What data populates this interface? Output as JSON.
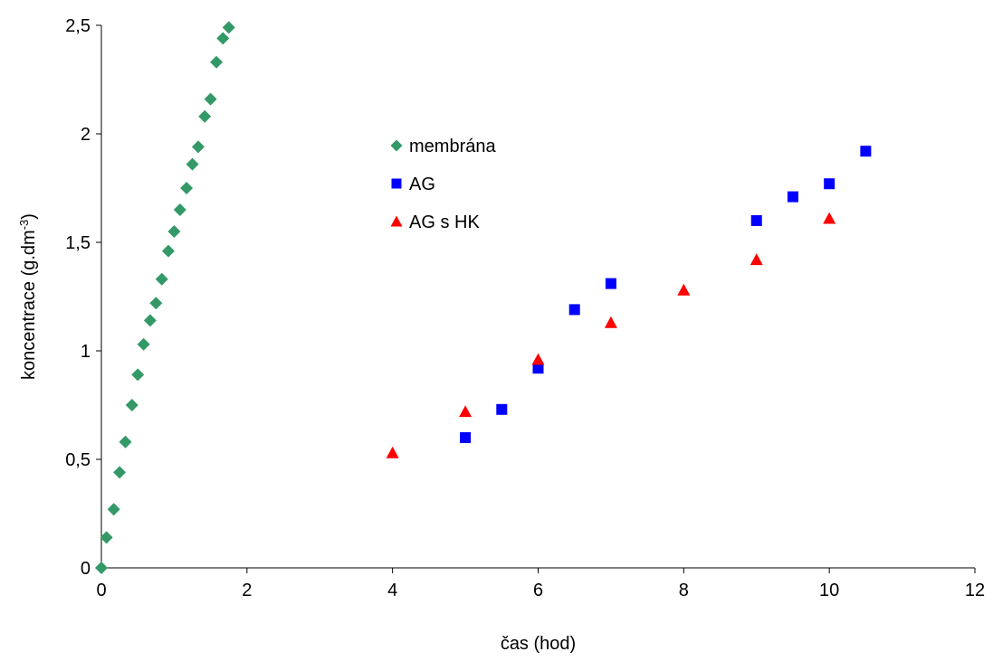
{
  "chart_data": {
    "type": "scatter",
    "title": "",
    "xlabel": "čas (hod)",
    "ylabel": {
      "base": "koncentrace (g.dm",
      "sup": "-3",
      "close": ")"
    },
    "xlim": [
      0,
      12
    ],
    "ylim": [
      0,
      2.5
    ],
    "x_ticks": [
      0,
      2,
      4,
      6,
      8,
      10,
      12
    ],
    "x_tick_labels": [
      "0",
      "2",
      "4",
      "6",
      "8",
      "10",
      "12"
    ],
    "y_ticks": [
      0,
      0.5,
      1,
      1.5,
      2,
      2.5
    ],
    "y_tick_labels": [
      "0",
      "0,5",
      "1",
      "1,5",
      "2",
      "2,5"
    ],
    "grid": false,
    "legend_position": "upper-center",
    "series": [
      {
        "name": "membrána",
        "marker": "diamond",
        "color": "#339966",
        "x": [
          0,
          0.07,
          0.17,
          0.25,
          0.33,
          0.42,
          0.5,
          0.58,
          0.67,
          0.75,
          0.83,
          0.92,
          1.0,
          1.08,
          1.17,
          1.25,
          1.33,
          1.42,
          1.5,
          1.58,
          1.67,
          1.75
        ],
        "y": [
          0,
          0.14,
          0.27,
          0.44,
          0.58,
          0.75,
          0.89,
          1.03,
          1.14,
          1.22,
          1.33,
          1.46,
          1.55,
          1.65,
          1.75,
          1.86,
          1.94,
          2.08,
          2.16,
          2.33,
          2.44,
          2.49
        ]
      },
      {
        "name": "AG",
        "marker": "square",
        "color": "#0000ff",
        "x": [
          5,
          5.5,
          6,
          6.5,
          7,
          9,
          9.5,
          10,
          10.5
        ],
        "y": [
          0.6,
          0.73,
          0.92,
          1.19,
          1.31,
          1.6,
          1.71,
          1.77,
          1.92
        ]
      },
      {
        "name": "AG s HK",
        "marker": "triangle",
        "color": "#ff0000",
        "x": [
          4,
          5,
          6,
          7,
          8,
          9,
          10
        ],
        "y": [
          0.53,
          0.72,
          0.96,
          1.13,
          1.28,
          1.42,
          1.61
        ]
      }
    ]
  }
}
